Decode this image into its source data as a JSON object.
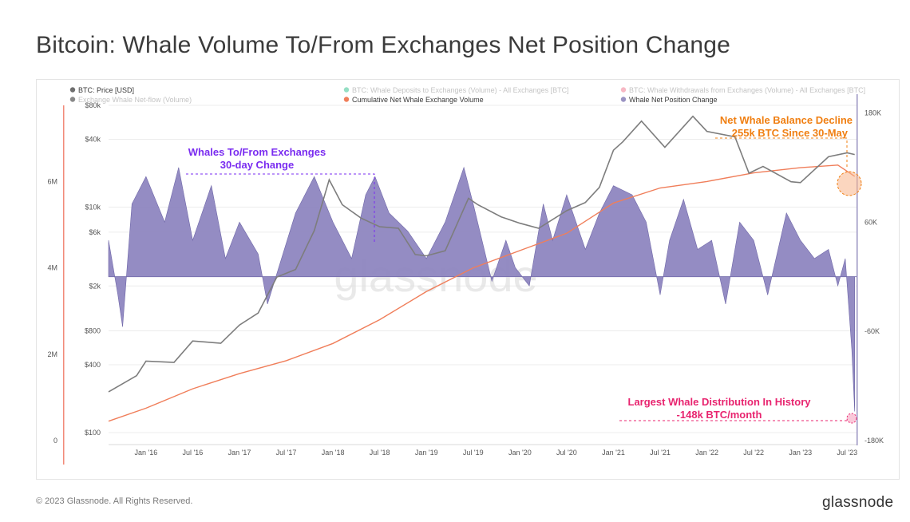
{
  "title": "Bitcoin: Whale Volume To/From Exchanges Net Position Change",
  "footer": "© 2023 Glassnode. All Rights Reserved.",
  "brand": "glassnode",
  "watermark": "glassnode",
  "legend": [
    {
      "label": "BTC: Price [USD]",
      "color": "#6f6f6f",
      "faded": false
    },
    {
      "label": "Exchange Whale Net-flow (Volume)",
      "color": "#111111",
      "faded": true
    },
    {
      "label": "BTC: Whale Deposits to Exchanges (Volume) - All Exchanges [BTC]",
      "color": "#2bbf8a",
      "faded": true
    },
    {
      "label": "Cumulative Net Whale Exchange Volume",
      "color": "#f07e5a",
      "faded": false
    },
    {
      "label": "BTC: Whale Withdrawals from Exchanges (Volume) - All Exchanges [BTC]",
      "color": "#f0728a",
      "faded": true
    },
    {
      "label": "Whale Net Position Change",
      "color": "#9a93c2",
      "faded": false
    }
  ],
  "annotations": {
    "whales_line1": "Whales To/From Exchanges",
    "whales_line2": "30-day Change",
    "decline_line1": "Net Whale Balance Decline",
    "decline_line2": "255k BTC Since 30-May",
    "largest_line1": "Largest Whale Distribution In History",
    "largest_line2": "-148k BTC/month"
  },
  "colors": {
    "accent_purple": "#7a2cf0",
    "accent_orange": "#f07f12",
    "accent_pink": "#e8246f",
    "area": "#8e86c0",
    "price": "#7d7d7d",
    "cumulative": "#f07e5a"
  },
  "chart_data": {
    "type": "area",
    "x_range": [
      "2015-08",
      "2023-08"
    ],
    "x_ticks": [
      "Jan '16",
      "Jul '16",
      "Jan '17",
      "Jul '17",
      "Jan '18",
      "Jul '18",
      "Jan '19",
      "Jul '19",
      "Jan '20",
      "Jul '20",
      "Jan '21",
      "Jul '21",
      "Jan '22",
      "Jul '22",
      "Jan '23",
      "Jul '23"
    ],
    "price_axis": {
      "label": "BTC: Price [USD]",
      "scale": "log",
      "ylim": [
        100,
        80000
      ],
      "ticks": [
        {
          "v": 100,
          "label": "$100"
        },
        {
          "v": 400,
          "label": "$400"
        },
        {
          "v": 800,
          "label": "$800"
        },
        {
          "v": 2000,
          "label": "$2k"
        },
        {
          "v": 6000,
          "label": "$6k"
        },
        {
          "v": 10000,
          "label": "$10k"
        },
        {
          "v": 40000,
          "label": "$40k"
        },
        {
          "v": 80000,
          "label": "$80k"
        }
      ]
    },
    "cumulative_axis": {
      "label": "Cumulative Net Whale Exchange Volume",
      "ylim": [
        0,
        7800000
      ],
      "ticks": [
        {
          "v": 0,
          "label": "0"
        },
        {
          "v": 2000000,
          "label": "2M"
        },
        {
          "v": 4000000,
          "label": "4M"
        },
        {
          "v": 6000000,
          "label": "6M"
        }
      ]
    },
    "net_change_axis": {
      "label": "Whale Net Position Change",
      "ylim": [
        -180000,
        190000
      ],
      "ticks": [
        {
          "v": -180000,
          "label": "-180K"
        },
        {
          "v": -60000,
          "label": "-60K"
        },
        {
          "v": 60000,
          "label": "60K"
        },
        {
          "v": 180000,
          "label": "180K"
        }
      ]
    },
    "series": [
      {
        "name": "BTC: Price [USD]",
        "kind": "line",
        "x_values": [
          2015.6,
          2015.9,
          2016.0,
          2016.3,
          2016.5,
          2016.8,
          2017.0,
          2017.2,
          2017.4,
          2017.6,
          2017.8,
          2017.96,
          2018.1,
          2018.3,
          2018.5,
          2018.7,
          2018.88,
          2019.0,
          2019.2,
          2019.45,
          2019.55,
          2019.8,
          2020.0,
          2020.2,
          2020.5,
          2020.7,
          2020.85,
          2021.0,
          2021.1,
          2021.3,
          2021.55,
          2021.85,
          2022.0,
          2022.3,
          2022.45,
          2022.6,
          2022.9,
          2023.0,
          2023.3,
          2023.5,
          2023.58
        ],
        "values": [
          230,
          320,
          430,
          420,
          650,
          620,
          900,
          1150,
          2400,
          2800,
          6200,
          17500,
          10500,
          8000,
          6700,
          6500,
          3800,
          3700,
          4100,
          12000,
          10500,
          8200,
          7200,
          6500,
          9300,
          11000,
          15000,
          32000,
          38000,
          58000,
          34000,
          64000,
          47000,
          42000,
          20000,
          23000,
          16800,
          16500,
          28000,
          30300,
          29300
        ]
      },
      {
        "name": "Cumulative Net Whale Exchange Volume",
        "kind": "line",
        "x_values": [
          2015.6,
          2016.0,
          2016.5,
          2017.0,
          2017.5,
          2018.0,
          2018.5,
          2019.0,
          2019.5,
          2020.0,
          2020.5,
          2021.0,
          2021.5,
          2022.0,
          2022.5,
          2023.0,
          2023.4,
          2023.58
        ],
        "values": [
          450000,
          750000,
          1200000,
          1550000,
          1850000,
          2250000,
          2800000,
          3450000,
          4000000,
          4400000,
          4800000,
          5500000,
          5850000,
          6000000,
          6200000,
          6320000,
          6380000,
          6120000
        ]
      },
      {
        "name": "Whale Net Position Change",
        "kind": "area",
        "x_values": [
          2015.6,
          2015.7,
          2015.75,
          2015.85,
          2016.0,
          2016.2,
          2016.35,
          2016.5,
          2016.7,
          2016.85,
          2017.0,
          2017.2,
          2017.3,
          2017.45,
          2017.6,
          2017.8,
          2018.0,
          2018.2,
          2018.35,
          2018.45,
          2018.6,
          2018.8,
          2019.0,
          2019.2,
          2019.4,
          2019.5,
          2019.7,
          2019.85,
          2019.95,
          2020.1,
          2020.25,
          2020.35,
          2020.5,
          2020.7,
          2020.85,
          2021.0,
          2021.2,
          2021.35,
          2021.5,
          2021.6,
          2021.75,
          2021.9,
          2022.05,
          2022.2,
          2022.35,
          2022.5,
          2022.65,
          2022.85,
          2023.0,
          2023.15,
          2023.3,
          2023.4,
          2023.48,
          2023.55,
          2023.58
        ],
        "values": [
          40000,
          -20000,
          -55000,
          80000,
          110000,
          60000,
          120000,
          40000,
          100000,
          20000,
          60000,
          25000,
          -30000,
          20000,
          70000,
          110000,
          60000,
          20000,
          90000,
          110000,
          70000,
          50000,
          20000,
          60000,
          120000,
          80000,
          -5000,
          40000,
          10000,
          -10000,
          80000,
          40000,
          90000,
          30000,
          70000,
          100000,
          90000,
          60000,
          -20000,
          40000,
          85000,
          30000,
          40000,
          -30000,
          60000,
          40000,
          -20000,
          70000,
          40000,
          20000,
          30000,
          -10000,
          20000,
          -80000,
          -148000
        ]
      }
    ]
  }
}
